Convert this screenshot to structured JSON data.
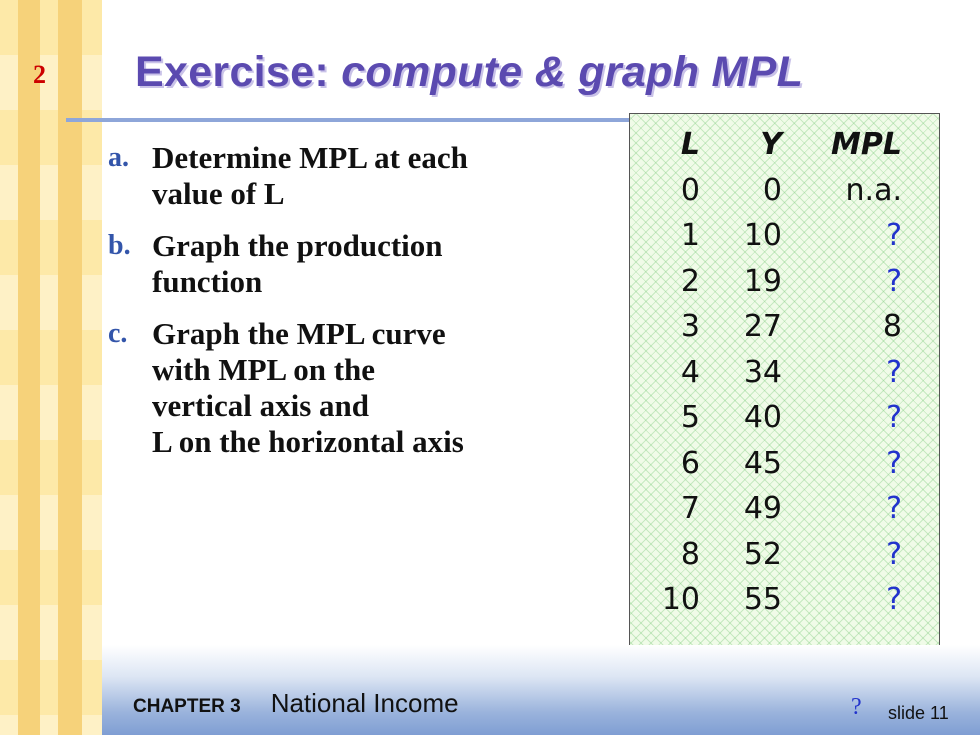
{
  "slide_number": "2",
  "title": {
    "prefix": "Exercise:  ",
    "italic": "compute & graph MPL"
  },
  "items": [
    {
      "marker": "a.",
      "text": "Determine MPL at each\nvalue of L"
    },
    {
      "marker": "b.",
      "text": "Graph the production\nfunction"
    },
    {
      "marker": "c.",
      "text": "Graph the MPL curve\nwith MPL on the\nvertical axis and\nL on the horizontal axis"
    }
  ],
  "table": {
    "headers": [
      "L",
      "Y",
      "MPL"
    ],
    "rows": [
      [
        "0",
        "0",
        "n.a."
      ],
      [
        "1",
        "10",
        "?"
      ],
      [
        "2",
        "19",
        "?"
      ],
      [
        "3",
        "27",
        "8"
      ],
      [
        "4",
        "34",
        "?"
      ],
      [
        "5",
        "40",
        "?"
      ],
      [
        "6",
        "45",
        "?"
      ],
      [
        "7",
        "49",
        "?"
      ],
      [
        "8",
        "52",
        "?"
      ],
      [
        "10",
        "55",
        "?"
      ]
    ]
  },
  "footer": {
    "chapter": "CHAPTER 3",
    "chapter_name": "National Income",
    "slide_label": "slide 11",
    "stray_mark": "?"
  },
  "colors": {
    "title": "#5b4ab0",
    "slide_number": "#cc0000",
    "question_mark": "#2233cc",
    "rule": "#8ea6d9"
  }
}
